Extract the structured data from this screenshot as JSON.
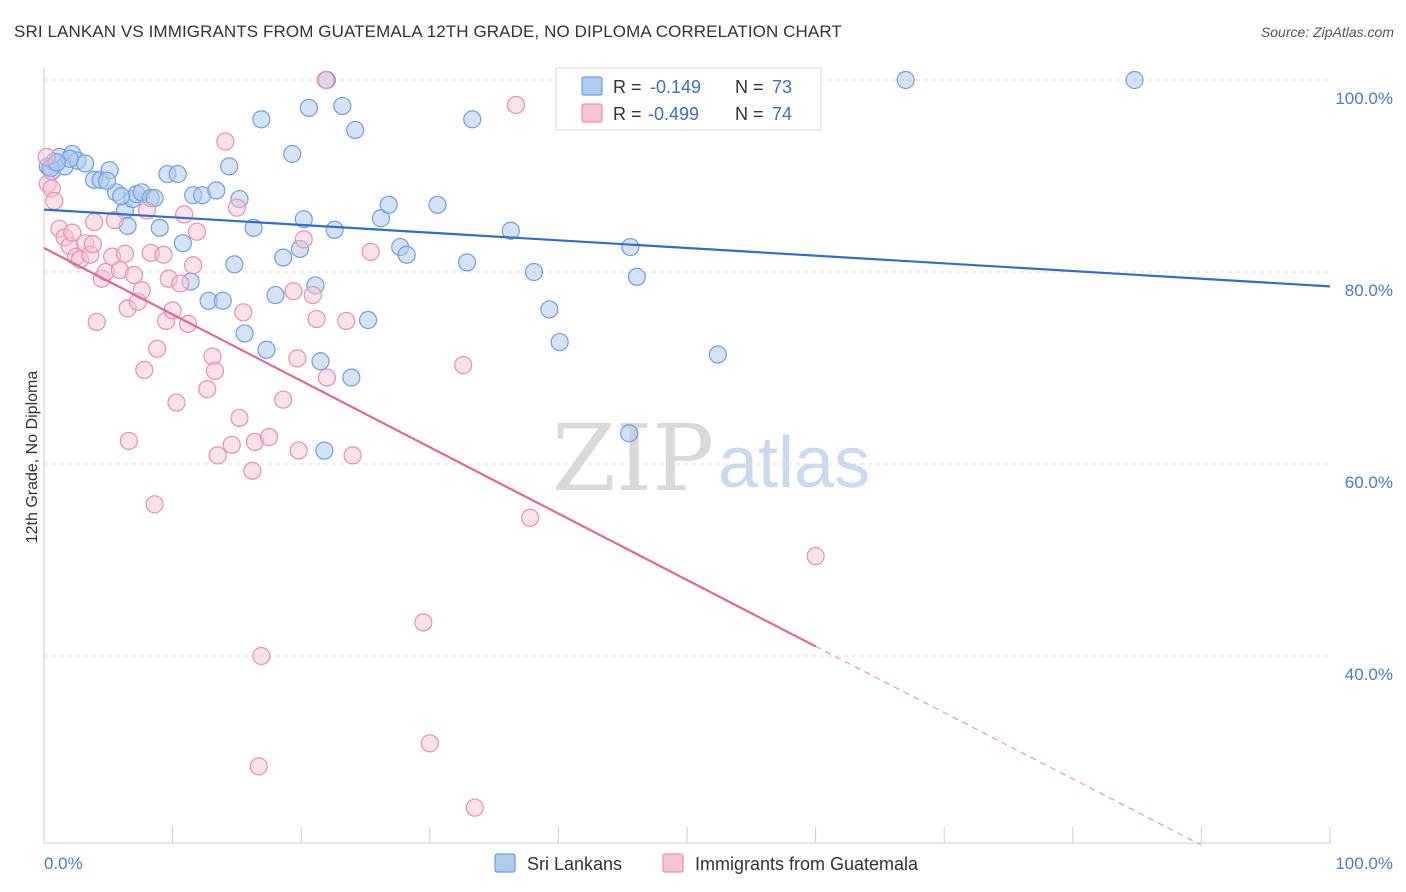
{
  "header": {
    "title": "SRI LANKAN VS IMMIGRANTS FROM GUATEMALA 12TH GRADE, NO DIPLOMA CORRELATION CHART",
    "source": "Source: ZipAtlas.com"
  },
  "watermark": {
    "zip": "ZIP",
    "atlas": "atlas"
  },
  "legend_top": [
    {
      "r_label": "R =",
      "r_value": "-0.149",
      "n_label": "N =",
      "n_value": "73"
    },
    {
      "r_label": "R =",
      "r_value": "-0.499",
      "n_label": "N =",
      "n_value": "74"
    }
  ],
  "legend_bottom": [
    {
      "label": "Sri Lankans"
    },
    {
      "label": "Immigrants from Guatemala"
    }
  ],
  "colors": {
    "blue_fill": "#aecbef",
    "blue_stroke": "#6f9fdc",
    "blue_line": "#2f6fcb",
    "pink_fill": "#f6c4d5",
    "pink_stroke": "#ea8fb0",
    "pink_line": "#e0679a",
    "tick_text": "#4a7cc9",
    "grid": "#dddddd"
  },
  "chart_data": {
    "type": "scatter",
    "title": "SRI LANKAN VS IMMIGRANTS FROM GUATEMALA 12TH GRADE, NO DIPLOMA CORRELATION CHART",
    "xlabel": "",
    "ylabel": "12th Grade, No Diploma",
    "xlim": [
      0,
      100
    ],
    "ylim": [
      20,
      102
    ],
    "x_tick_labels": [
      "0.0%",
      "100.0%"
    ],
    "y_ticks": [
      40,
      60,
      80,
      100
    ],
    "y_tick_labels": [
      "40.0%",
      "60.0%",
      "80.0%",
      "100.0%"
    ],
    "grid": true,
    "legend_placement": "top-center",
    "series": [
      {
        "name": "Sri Lankans",
        "r": -0.149,
        "n": 73,
        "trend": {
          "x0": 0,
          "y0": 86.5,
          "x1": 100,
          "y1": 78.5
        },
        "points": [
          [
            0.3,
            91
          ],
          [
            0.6,
            90.5
          ],
          [
            0.8,
            91.5
          ],
          [
            1.2,
            92
          ],
          [
            1.6,
            91
          ],
          [
            2.2,
            92.3
          ],
          [
            2.6,
            91.6
          ],
          [
            3.2,
            91.3
          ],
          [
            3.9,
            89.6
          ],
          [
            4.4,
            89.6
          ],
          [
            5.1,
            90.6
          ],
          [
            5.6,
            88.3
          ],
          [
            6.3,
            86.4
          ],
          [
            6.5,
            84.8
          ],
          [
            6.9,
            87.6
          ],
          [
            7.2,
            88.1
          ],
          [
            7.6,
            88.3
          ],
          [
            8.3,
            87.7
          ],
          [
            8.6,
            87.7
          ],
          [
            9.0,
            84.6
          ],
          [
            9.6,
            90.2
          ],
          [
            10.4,
            90.2
          ],
          [
            10.8,
            83.0
          ],
          [
            11.4,
            79
          ],
          [
            11.6,
            88
          ],
          [
            12.3,
            88
          ],
          [
            12.8,
            77
          ],
          [
            13.4,
            88.5
          ],
          [
            13.9,
            77
          ],
          [
            14.4,
            91
          ],
          [
            14.8,
            80.8
          ],
          [
            15.2,
            87.6
          ],
          [
            15.6,
            73.6
          ],
          [
            16.3,
            84.6
          ],
          [
            17.3,
            71.9
          ],
          [
            18.0,
            77.6
          ],
          [
            18.6,
            81.5
          ],
          [
            19.3,
            92.3
          ],
          [
            19.9,
            82.4
          ],
          [
            20.2,
            85.5
          ],
          [
            20.6,
            97.1
          ],
          [
            21.1,
            78.6
          ],
          [
            21.5,
            70.7
          ],
          [
            21.8,
            61.4
          ],
          [
            22.0,
            100
          ],
          [
            22.6,
            84.4
          ],
          [
            23.2,
            97.3
          ],
          [
            23.9,
            69.0
          ],
          [
            24.2,
            94.8
          ],
          [
            25.2,
            75.0
          ],
          [
            26.2,
            85.6
          ],
          [
            26.8,
            87.0
          ],
          [
            27.7,
            82.6
          ],
          [
            28.2,
            81.8
          ],
          [
            30.6,
            87
          ],
          [
            32.9,
            81
          ],
          [
            33.3,
            95.9
          ],
          [
            36.3,
            84.3
          ],
          [
            38.1,
            80
          ],
          [
            39.3,
            76.1
          ],
          [
            40.1,
            72.7
          ],
          [
            45.5,
            63.2
          ],
          [
            45.6,
            82.6
          ],
          [
            46.1,
            79.5
          ],
          [
            52.4,
            71.4
          ],
          [
            67.0,
            100
          ],
          [
            84.8,
            100
          ],
          [
            0.5,
            90.8
          ],
          [
            2.0,
            91.8
          ],
          [
            4.9,
            89.5
          ],
          [
            6.0,
            87.9
          ],
          [
            16.9,
            95.9
          ],
          [
            1.0,
            91.4
          ]
        ]
      },
      {
        "name": "Immigrants from Guatemala",
        "r": -0.499,
        "n": 74,
        "trend": {
          "x0": 0,
          "y0": 82.5,
          "x1": 60,
          "y1": 41
        },
        "trend_extension": {
          "x0": 60,
          "y0": 41,
          "x1": 90,
          "y1": 20.3
        },
        "points": [
          [
            0.2,
            92.0
          ],
          [
            0.3,
            89.2
          ],
          [
            0.6,
            88.7
          ],
          [
            0.8,
            87.4
          ],
          [
            1.2,
            84.5
          ],
          [
            1.6,
            83.6
          ],
          [
            2.0,
            82.7
          ],
          [
            2.2,
            84.1
          ],
          [
            2.5,
            81.6
          ],
          [
            2.8,
            81.3
          ],
          [
            3.2,
            83.0
          ],
          [
            3.6,
            81.8
          ],
          [
            3.8,
            82.9
          ],
          [
            3.9,
            85.2
          ],
          [
            4.1,
            74.8
          ],
          [
            4.5,
            79.3
          ],
          [
            4.8,
            80.0
          ],
          [
            5.3,
            81.6
          ],
          [
            5.5,
            85.4
          ],
          [
            5.9,
            80.2
          ],
          [
            6.3,
            81.9
          ],
          [
            6.5,
            76.2
          ],
          [
            6.6,
            62.4
          ],
          [
            7.0,
            79.7
          ],
          [
            7.3,
            76.9
          ],
          [
            7.6,
            78.1
          ],
          [
            7.8,
            69.8
          ],
          [
            8.0,
            86.4
          ],
          [
            8.3,
            82.0
          ],
          [
            8.6,
            55.8
          ],
          [
            8.8,
            72.0
          ],
          [
            9.3,
            81.8
          ],
          [
            9.5,
            74.9
          ],
          [
            9.7,
            79.3
          ],
          [
            10.0,
            76.0
          ],
          [
            10.3,
            66.4
          ],
          [
            10.6,
            78.8
          ],
          [
            10.9,
            86.0
          ],
          [
            11.2,
            74.6
          ],
          [
            11.6,
            80.7
          ],
          [
            11.9,
            84.2
          ],
          [
            12.7,
            67.8
          ],
          [
            13.1,
            71.2
          ],
          [
            13.3,
            69.7
          ],
          [
            13.5,
            60.9
          ],
          [
            14.1,
            93.6
          ],
          [
            14.6,
            62.0
          ],
          [
            15.0,
            86.7
          ],
          [
            15.2,
            64.8
          ],
          [
            15.5,
            75.8
          ],
          [
            16.2,
            59.3
          ],
          [
            16.4,
            62.3
          ],
          [
            16.7,
            28.5
          ],
          [
            16.9,
            40.0
          ],
          [
            17.5,
            62.8
          ],
          [
            18.6,
            66.7
          ],
          [
            19.4,
            78.0
          ],
          [
            19.7,
            71.0
          ],
          [
            19.8,
            61.4
          ],
          [
            20.2,
            83.4
          ],
          [
            20.9,
            77.6
          ],
          [
            21.2,
            75.1
          ],
          [
            21.9,
            100
          ],
          [
            22.0,
            69.0
          ],
          [
            23.5,
            74.9
          ],
          [
            24.0,
            60.9
          ],
          [
            25.4,
            82.1
          ],
          [
            29.5,
            43.5
          ],
          [
            30.0,
            30.9
          ],
          [
            32.6,
            70.3
          ],
          [
            33.5,
            24.2
          ],
          [
            36.7,
            97.4
          ],
          [
            37.8,
            54.4
          ],
          [
            60.0,
            50.4
          ]
        ]
      }
    ]
  }
}
